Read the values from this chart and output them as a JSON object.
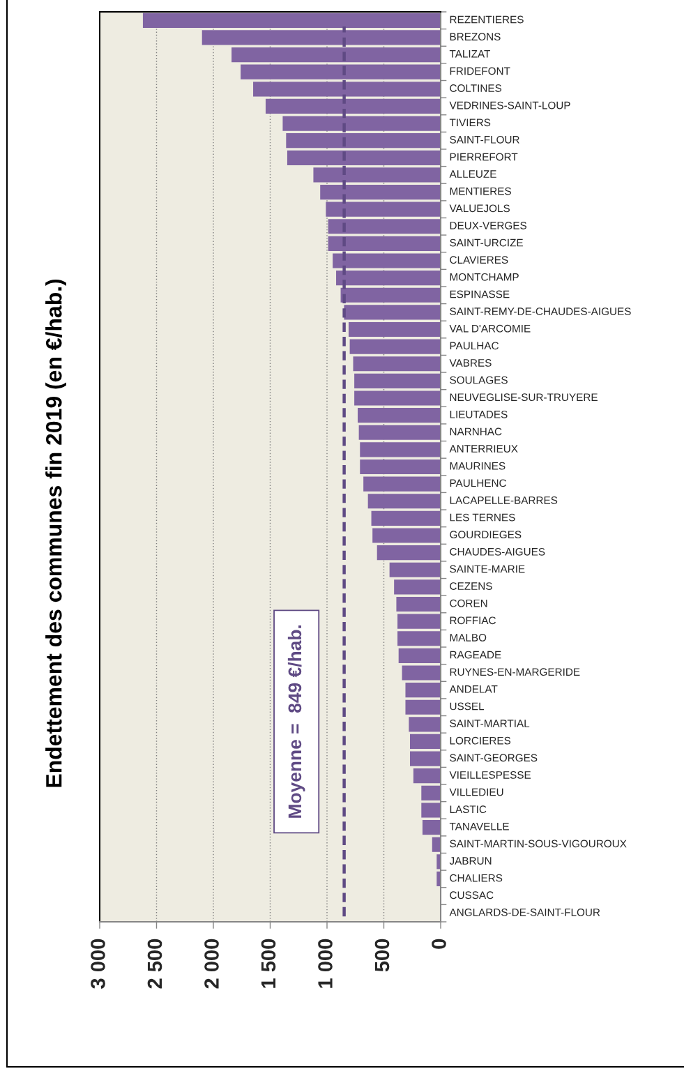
{
  "chart_data": {
    "type": "bar",
    "orientation": "horizontal",
    "title": "Endettement des communes fin 2019 (en €/hab.)",
    "categories": [
      "REZENTIERES",
      "BREZONS",
      "TALIZAT",
      "FRIDEFONT",
      "COLTINES",
      "VEDRINES-SAINT-LOUP",
      "TIVIERS",
      "SAINT-FLOUR",
      "PIERREFORT",
      "ALLEUZE",
      "MENTIERES",
      "VALUEJOLS",
      "DEUX-VERGES",
      "SAINT-URCIZE",
      "CLAVIERES",
      "MONTCHAMP",
      "ESPINASSE",
      "SAINT-REMY-DE-CHAUDES-AIGUES",
      "VAL D'ARCOMIE",
      "PAULHAC",
      "VABRES",
      "SOULAGES",
      "NEUVEGLISE-SUR-TRUYERE",
      "LIEUTADES",
      "NARNHAC",
      "ANTERRIEUX",
      "MAURINES",
      "PAULHENC",
      "LACAPELLE-BARRES",
      "LES TERNES",
      "GOURDIEGES",
      "CHAUDES-AIGUES",
      "SAINTE-MARIE",
      "CEZENS",
      "COREN",
      "ROFFIAC",
      "MALBO",
      "RAGEADE",
      "RUYNES-EN-MARGERIDE",
      "ANDELAT",
      "USSEL",
      "SAINT-MARTIAL",
      "LORCIERES",
      "SAINT-GEORGES",
      "VIEILLESPESSE",
      "VILLEDIEU",
      "LASTIC",
      "TANAVELLE",
      "SAINT-MARTIN-SOUS-VIGOUROUX",
      "JABRUN",
      "CHALIERS",
      "CUSSAC",
      "ANGLARDS-DE-SAINT-FLOUR"
    ],
    "values": [
      2620,
      2100,
      1840,
      1760,
      1650,
      1540,
      1390,
      1360,
      1350,
      1120,
      1060,
      1010,
      990,
      990,
      950,
      920,
      880,
      850,
      810,
      800,
      770,
      760,
      760,
      730,
      720,
      710,
      710,
      680,
      640,
      610,
      600,
      560,
      450,
      410,
      390,
      380,
      380,
      370,
      340,
      310,
      310,
      280,
      270,
      270,
      240,
      170,
      170,
      160,
      75,
      35,
      35,
      0,
      0
    ],
    "color": "#8064a2",
    "xlim": [
      3000,
      0
    ],
    "xticks": [
      {
        "value": 3000,
        "label": "3 000"
      },
      {
        "value": 2500,
        "label": "2 500"
      },
      {
        "value": 2000,
        "label": "2 000"
      },
      {
        "value": 1500,
        "label": "1 500"
      },
      {
        "value": 1000,
        "label": "1 000"
      },
      500,
      0
    ],
    "grid": "x",
    "ref_lines": [
      {
        "axis": "x",
        "value": 849,
        "label": "Moyenne =  849 €/hab.",
        "color": "#5f4a84",
        "line_style": "dashed"
      }
    ]
  }
}
